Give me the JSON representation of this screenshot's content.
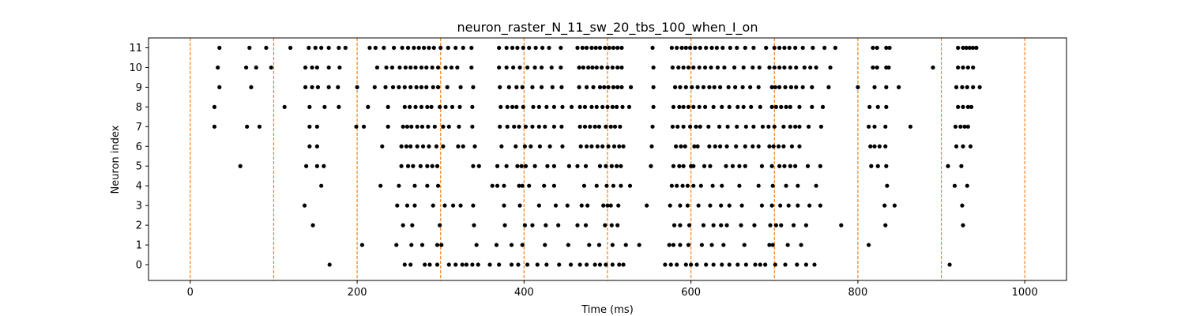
{
  "chart_data": {
    "type": "scatter",
    "title": "neuron_raster_N_11_sw_20_tbs_100_when_I_on",
    "xlabel": "Time (ms)",
    "ylabel": "Neuron index",
    "xlim": [
      -50,
      1050
    ],
    "ylim": [
      -0.8,
      11.5
    ],
    "xticks": [
      0,
      200,
      400,
      600,
      800,
      1000
    ],
    "yticks": [
      0,
      1,
      2,
      3,
      4,
      5,
      6,
      7,
      8,
      9,
      10,
      11
    ],
    "grid": false,
    "marker_color": "#000000",
    "vline_color": "#ff7f0e",
    "stimulus_onsets_ms": [
      0,
      100,
      200,
      300,
      400,
      500,
      600,
      700,
      800,
      900,
      1000
    ],
    "series": [
      {
        "neuron": 0,
        "spike_times_ms": [
          167,
          257,
          264,
          281,
          287,
          296,
          310,
          318,
          326,
          331,
          338,
          345,
          359,
          370,
          385,
          393,
          404,
          416,
          427,
          442,
          456,
          467,
          475,
          485,
          491,
          498,
          506,
          514,
          519,
          569,
          576,
          583,
          594,
          600,
          607,
          618,
          627,
          637,
          646,
          656,
          666,
          677,
          683,
          689,
          701,
          713,
          727,
          738,
          748,
          910
        ]
      },
      {
        "neuron": 1,
        "spike_times_ms": [
          206,
          247,
          265,
          278,
          296,
          301,
          343,
          367,
          385,
          398,
          425,
          453,
          478,
          490,
          506,
          522,
          538,
          574,
          579,
          587,
          597,
          613,
          625,
          639,
          664,
          694,
          698,
          716,
          732,
          813
        ]
      },
      {
        "neuron": 2,
        "spike_times_ms": [
          147,
          255,
          266,
          299,
          340,
          377,
          401,
          410,
          426,
          441,
          464,
          474,
          497,
          505,
          512,
          580,
          587,
          598,
          615,
          627,
          636,
          643,
          660,
          676,
          695,
          702,
          708,
          723,
          738,
          780,
          833,
          926
        ]
      },
      {
        "neuron": 3,
        "spike_times_ms": [
          137,
          248,
          260,
          269,
          291,
          305,
          315,
          324,
          339,
          376,
          395,
          418,
          438,
          452,
          469,
          476,
          495,
          500,
          504,
          513,
          547,
          575,
          587,
          596,
          609,
          623,
          636,
          646,
          661,
          685,
          697,
          707,
          717,
          728,
          742,
          755,
          832,
          844,
          925
        ]
      },
      {
        "neuron": 4,
        "spike_times_ms": [
          157,
          228,
          250,
          269,
          284,
          297,
          362,
          368,
          376,
          394,
          398,
          406,
          424,
          436,
          472,
          487,
          499,
          507,
          516,
          527,
          577,
          583,
          590,
          596,
          603,
          612,
          626,
          637,
          658,
          681,
          698,
          714,
          728,
          750,
          835,
          916,
          931
        ]
      },
      {
        "neuron": 5,
        "spike_times_ms": [
          60,
          139,
          152,
          160,
          253,
          261,
          267,
          276,
          284,
          290,
          296,
          339,
          346,
          368,
          379,
          392,
          397,
          402,
          413,
          428,
          436,
          454,
          464,
          474,
          491,
          498,
          505,
          511,
          516,
          552,
          579,
          586,
          591,
          600,
          603,
          616,
          623,
          642,
          650,
          658,
          665,
          685,
          697,
          706,
          712,
          719,
          725,
          740,
          755,
          816,
          824,
          834,
          908,
          924
        ]
      },
      {
        "neuron": 6,
        "spike_times_ms": [
          143,
          152,
          230,
          253,
          259,
          264,
          272,
          279,
          286,
          295,
          303,
          321,
          327,
          341,
          373,
          390,
          401,
          408,
          419,
          431,
          446,
          468,
          475,
          481,
          488,
          494,
          501,
          508,
          514,
          519,
          553,
          582,
          588,
          593,
          604,
          608,
          622,
          629,
          635,
          643,
          654,
          665,
          674,
          681,
          694,
          699,
          705,
          711,
          721,
          730,
          815,
          820,
          826,
          833,
          918,
          926,
          935
        ]
      },
      {
        "neuron": 7,
        "spike_times_ms": [
          29,
          68,
          83,
          143,
          152,
          199,
          208,
          237,
          255,
          260,
          265,
          272,
          278,
          285,
          293,
          303,
          310,
          322,
          338,
          371,
          380,
          388,
          394,
          402,
          410,
          418,
          425,
          436,
          445,
          467,
          473,
          479,
          485,
          490,
          498,
          504,
          509,
          515,
          554,
          578,
          584,
          591,
          599,
          606,
          611,
          621,
          634,
          644,
          655,
          666,
          675,
          686,
          693,
          700,
          711,
          719,
          725,
          730,
          741,
          756,
          813,
          820,
          833,
          863,
          917,
          923,
          928,
          932
        ]
      },
      {
        "neuron": 8,
        "spike_times_ms": [
          29,
          113,
          143,
          161,
          178,
          213,
          237,
          257,
          263,
          270,
          277,
          284,
          289,
          299,
          306,
          314,
          323,
          338,
          372,
          380,
          386,
          391,
          399,
          411,
          418,
          427,
          436,
          446,
          457,
          467,
          473,
          481,
          487,
          494,
          500,
          506,
          511,
          518,
          526,
          555,
          579,
          586,
          591,
          597,
          603,
          610,
          617,
          627,
          637,
          646,
          656,
          663,
          672,
          683,
          697,
          702,
          708,
          714,
          719,
          730,
          745,
          758,
          814,
          824,
          834,
          920,
          926,
          932,
          936
        ]
      },
      {
        "neuron": 9,
        "spike_times_ms": [
          35,
          73,
          138,
          146,
          153,
          166,
          177,
          200,
          221,
          234,
          243,
          250,
          257,
          264,
          271,
          277,
          283,
          291,
          297,
          308,
          324,
          339,
          371,
          382,
          391,
          398,
          410,
          421,
          434,
          445,
          466,
          475,
          483,
          491,
          496,
          501,
          507,
          512,
          517,
          528,
          555,
          581,
          587,
          594,
          601,
          608,
          615,
          622,
          628,
          635,
          645,
          653,
          662,
          671,
          681,
          697,
          701,
          706,
          713,
          720,
          726,
          734,
          745,
          765,
          800,
          820,
          834,
          849,
          918,
          925,
          931,
          938,
          946
        ]
      },
      {
        "neuron": 10,
        "spike_times_ms": [
          33,
          67,
          79,
          97,
          138,
          146,
          152,
          166,
          179,
          224,
          235,
          242,
          251,
          258,
          264,
          270,
          277,
          283,
          290,
          297,
          306,
          313,
          320,
          337,
          370,
          379,
          387,
          395,
          404,
          413,
          421,
          433,
          444,
          466,
          471,
          477,
          482,
          487,
          493,
          500,
          506,
          512,
          517,
          555,
          578,
          585,
          591,
          597,
          603,
          610,
          617,
          624,
          632,
          640,
          652,
          663,
          674,
          682,
          694,
          700,
          706,
          712,
          719,
          726,
          736,
          743,
          750,
          767,
          818,
          823,
          834,
          837,
          890,
          920,
          926,
          932,
          938
        ]
      },
      {
        "neuron": 11,
        "spike_times_ms": [
          35,
          71,
          91,
          120,
          142,
          150,
          157,
          166,
          178,
          186,
          215,
          222,
          232,
          244,
          254,
          261,
          268,
          274,
          280,
          286,
          292,
          300,
          309,
          318,
          327,
          337,
          370,
          379,
          386,
          392,
          399,
          406,
          414,
          422,
          430,
          444,
          464,
          470,
          475,
          481,
          486,
          491,
          497,
          502,
          507,
          512,
          517,
          554,
          577,
          583,
          589,
          594,
          599,
          605,
          611,
          618,
          625,
          631,
          638,
          647,
          655,
          665,
          675,
          690,
          700,
          706,
          712,
          718,
          725,
          734,
          746,
          760,
          773,
          818,
          823,
          834,
          838,
          920,
          926,
          930,
          934,
          938,
          942
        ]
      }
    ]
  }
}
